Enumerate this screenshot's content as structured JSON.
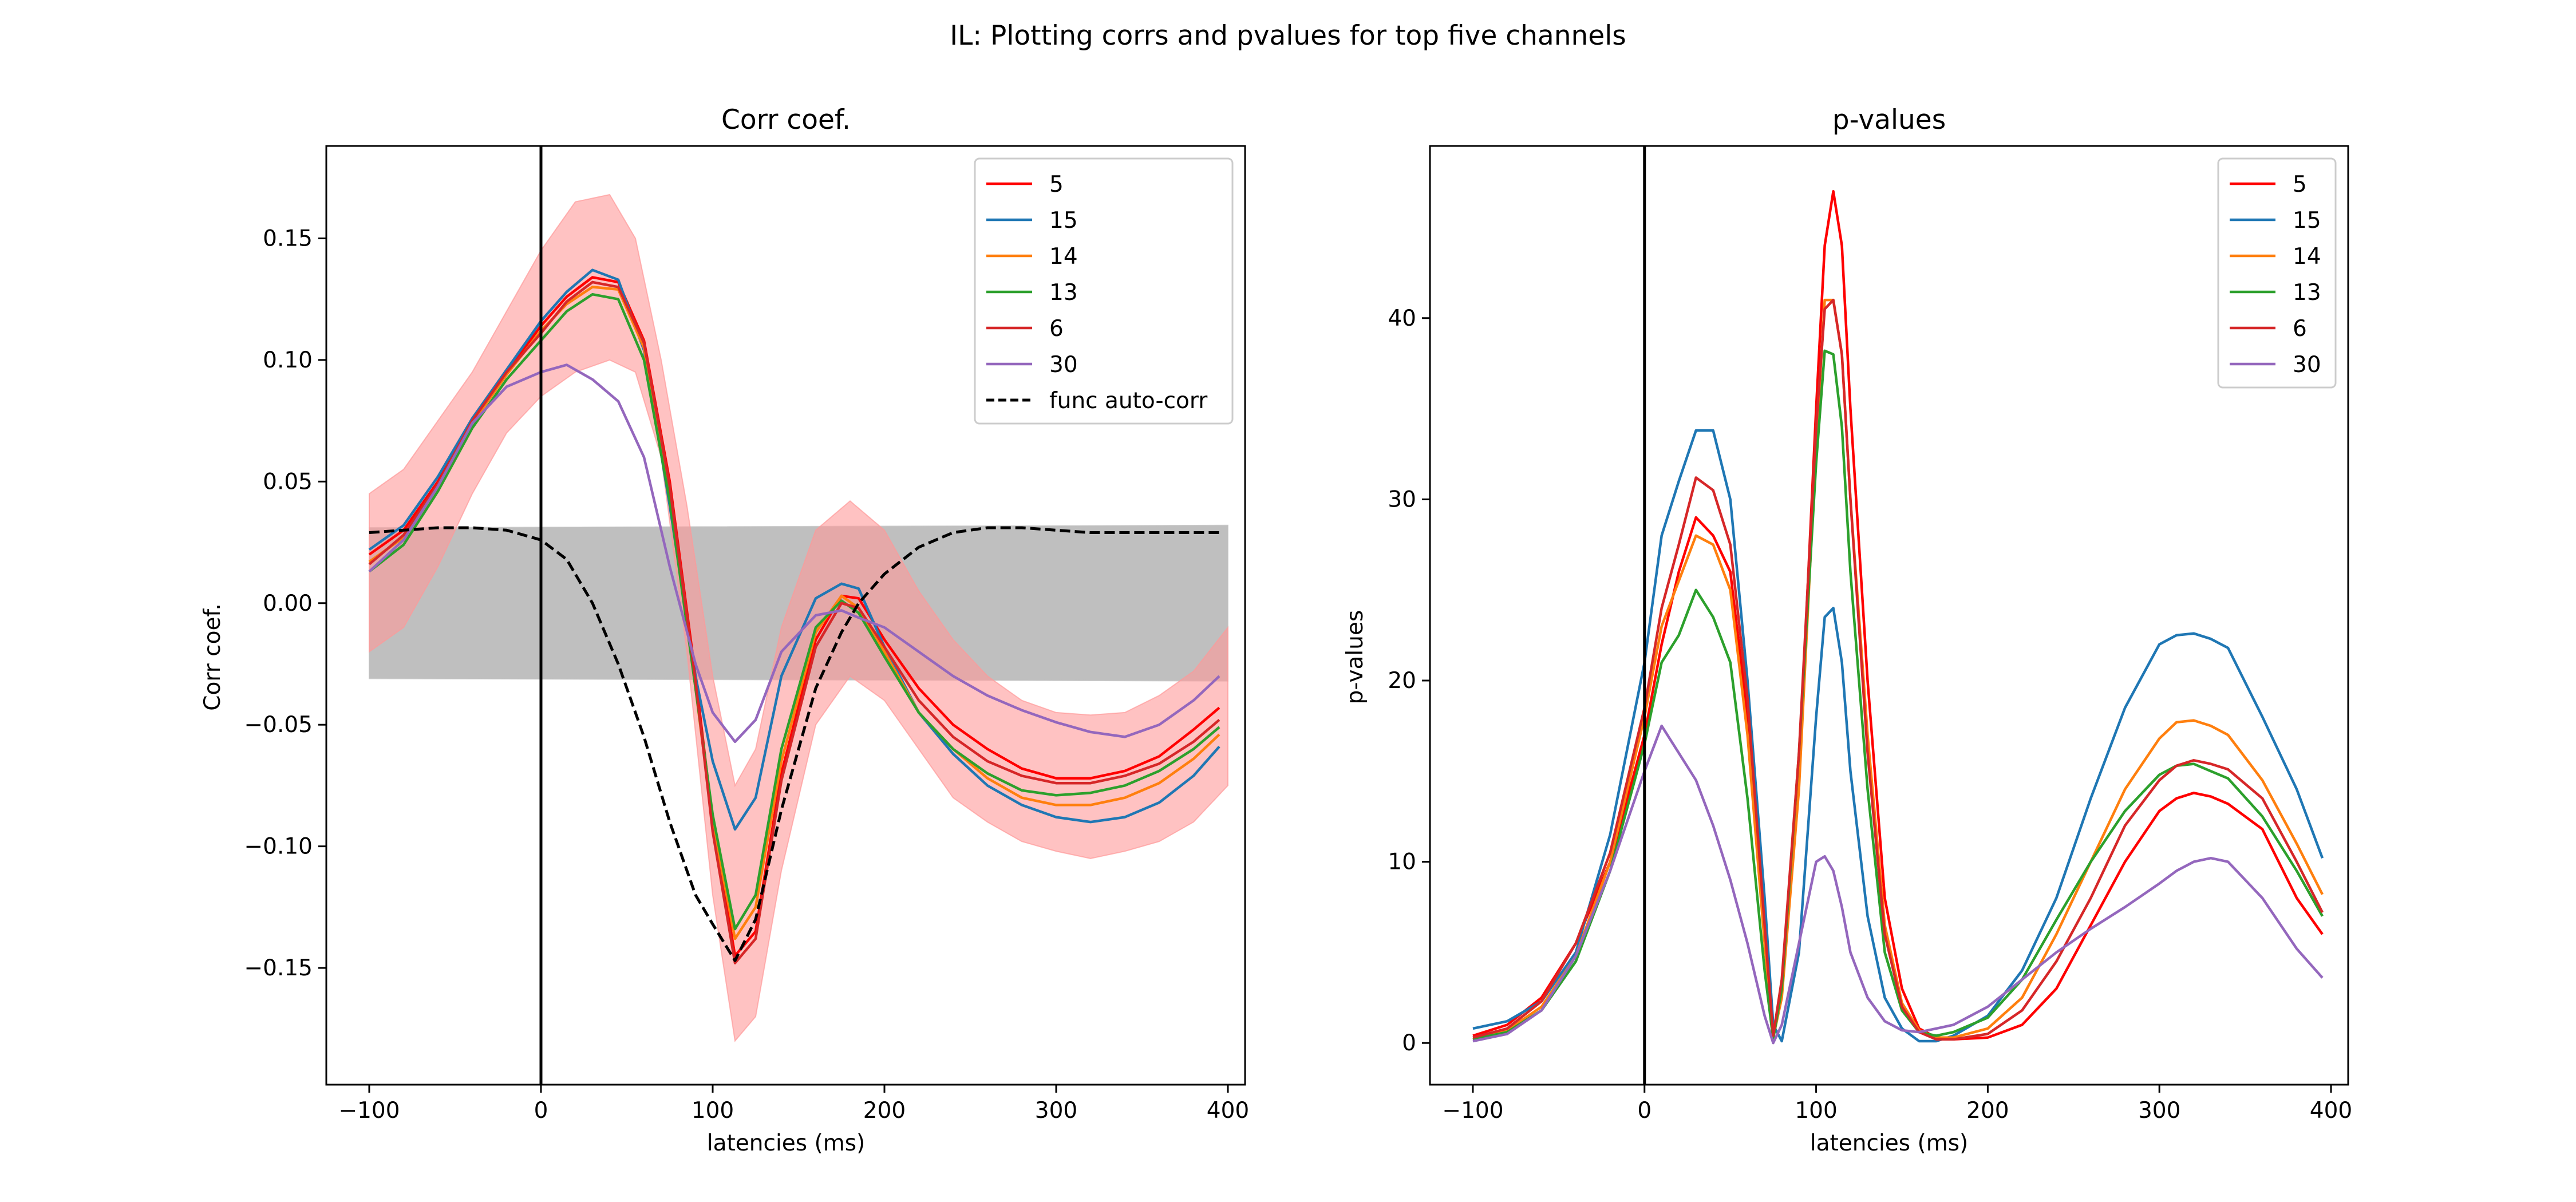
{
  "figure": {
    "suptitle": "IL: Plotting corrs and pvalues for top five channels"
  },
  "colors": {
    "red": "#ff0000",
    "darkred": "#d62728",
    "blue": "#1f77b4",
    "orange": "#ff7f0e",
    "green": "#2ca02c",
    "purple": "#9467bd",
    "black": "#000000",
    "ci_fill": "#ff9999",
    "null_fill": "#bfbfbf"
  },
  "chart_data": [
    {
      "type": "line",
      "title": "Corr coef.",
      "xlabel": "latencies (ms)",
      "ylabel": "Corr coef.",
      "xlim": [
        -125,
        410
      ],
      "ylim": [
        -0.198,
        0.188
      ],
      "xticks": [
        -100,
        0,
        100,
        200,
        300,
        400
      ],
      "xtick_labels": [
        "−100",
        "0",
        "100",
        "200",
        "300",
        "400"
      ],
      "yticks": [
        -0.15,
        -0.1,
        -0.05,
        0.0,
        0.05,
        0.1,
        0.15
      ],
      "ytick_labels": [
        "−0.15",
        "−0.10",
        "−0.05",
        "0.00",
        "0.05",
        "0.10",
        "0.15"
      ],
      "vline_x": 0,
      "legend_position": "top-right",
      "null_band": {
        "x": [
          -100,
          400
        ],
        "upper": [
          0.031,
          0.032
        ],
        "lower": [
          -0.031,
          -0.032
        ]
      },
      "ci_band": {
        "x": [
          -100,
          -80,
          -60,
          -40,
          -20,
          0,
          20,
          40,
          55,
          70,
          85,
          100,
          113,
          125,
          140,
          160,
          180,
          200,
          220,
          240,
          260,
          280,
          300,
          320,
          340,
          360,
          380,
          400
        ],
        "upper": [
          0.045,
          0.055,
          0.075,
          0.095,
          0.12,
          0.145,
          0.165,
          0.168,
          0.15,
          0.1,
          0.04,
          -0.03,
          -0.075,
          -0.06,
          -0.01,
          0.03,
          0.042,
          0.03,
          0.005,
          -0.015,
          -0.03,
          -0.04,
          -0.045,
          -0.046,
          -0.045,
          -0.038,
          -0.028,
          -0.01
        ],
        "lower": [
          -0.02,
          -0.01,
          0.015,
          0.045,
          0.07,
          0.085,
          0.095,
          0.1,
          0.095,
          0.06,
          -0.02,
          -0.12,
          -0.18,
          -0.17,
          -0.11,
          -0.05,
          -0.03,
          -0.04,
          -0.06,
          -0.08,
          -0.09,
          -0.098,
          -0.102,
          -0.105,
          -0.102,
          -0.098,
          -0.09,
          -0.075
        ]
      },
      "x": [
        -100,
        -80,
        -60,
        -40,
        -20,
        0,
        15,
        30,
        45,
        60,
        75,
        90,
        100,
        113,
        125,
        140,
        160,
        175,
        185,
        200,
        220,
        240,
        260,
        280,
        300,
        320,
        340,
        360,
        380,
        395
      ],
      "series": [
        {
          "name": "5",
          "color": "#ff0000",
          "values": [
            0.02,
            0.03,
            0.05,
            0.075,
            0.095,
            0.114,
            0.126,
            0.134,
            0.132,
            0.108,
            0.05,
            -0.03,
            -0.09,
            -0.145,
            -0.135,
            -0.07,
            -0.015,
            0.003,
            0.002,
            -0.015,
            -0.035,
            -0.05,
            -0.06,
            -0.068,
            -0.072,
            -0.072,
            -0.069,
            -0.063,
            -0.052,
            -0.043
          ]
        },
        {
          "name": "15",
          "color": "#1f77b4",
          "values": [
            0.022,
            0.032,
            0.052,
            0.076,
            0.096,
            0.116,
            0.128,
            0.137,
            0.133,
            0.104,
            0.04,
            -0.03,
            -0.065,
            -0.093,
            -0.08,
            -0.03,
            0.002,
            0.008,
            0.006,
            -0.018,
            -0.045,
            -0.062,
            -0.075,
            -0.083,
            -0.088,
            -0.09,
            -0.088,
            -0.082,
            -0.071,
            -0.059
          ]
        },
        {
          "name": "14",
          "color": "#ff7f0e",
          "values": [
            0.017,
            0.027,
            0.048,
            0.074,
            0.094,
            0.112,
            0.123,
            0.13,
            0.129,
            0.105,
            0.045,
            -0.035,
            -0.09,
            -0.138,
            -0.125,
            -0.065,
            -0.012,
            0.003,
            -0.002,
            -0.02,
            -0.045,
            -0.06,
            -0.072,
            -0.08,
            -0.083,
            -0.083,
            -0.08,
            -0.074,
            -0.064,
            -0.054
          ]
        },
        {
          "name": "13",
          "color": "#2ca02c",
          "values": [
            0.013,
            0.024,
            0.046,
            0.072,
            0.092,
            0.108,
            0.12,
            0.127,
            0.125,
            0.1,
            0.042,
            -0.035,
            -0.087,
            -0.134,
            -0.12,
            -0.06,
            -0.01,
            0.001,
            -0.004,
            -0.022,
            -0.045,
            -0.06,
            -0.07,
            -0.077,
            -0.079,
            -0.078,
            -0.075,
            -0.069,
            -0.06,
            -0.051
          ]
        },
        {
          "name": "6",
          "color": "#d62728",
          "values": [
            0.016,
            0.028,
            0.049,
            0.075,
            0.095,
            0.111,
            0.124,
            0.132,
            0.13,
            0.107,
            0.048,
            -0.032,
            -0.094,
            -0.148,
            -0.138,
            -0.073,
            -0.018,
            0.0,
            -0.002,
            -0.018,
            -0.04,
            -0.055,
            -0.065,
            -0.071,
            -0.074,
            -0.074,
            -0.071,
            -0.066,
            -0.057,
            -0.048
          ]
        },
        {
          "name": "30",
          "color": "#9467bd",
          "values": [
            0.013,
            0.026,
            0.048,
            0.074,
            0.089,
            0.095,
            0.098,
            0.092,
            0.083,
            0.06,
            0.015,
            -0.025,
            -0.045,
            -0.057,
            -0.048,
            -0.02,
            -0.005,
            -0.003,
            -0.006,
            -0.01,
            -0.02,
            -0.03,
            -0.038,
            -0.044,
            -0.049,
            -0.053,
            -0.055,
            -0.05,
            -0.04,
            -0.03
          ]
        },
        {
          "name": "func auto-corr",
          "color": "#000000",
          "dashed": true,
          "values": [
            0.029,
            0.03,
            0.031,
            0.031,
            0.03,
            0.026,
            0.018,
            0.0,
            -0.025,
            -0.055,
            -0.09,
            -0.12,
            -0.132,
            -0.147,
            -0.13,
            -0.085,
            -0.035,
            -0.012,
            0.0,
            0.012,
            0.023,
            0.029,
            0.031,
            0.031,
            0.03,
            0.029,
            0.029,
            0.029,
            0.029,
            0.029
          ]
        }
      ]
    },
    {
      "type": "line",
      "title": "p-values",
      "xlabel": "latencies (ms)",
      "ylabel": "p-values",
      "xlim": [
        -125,
        410
      ],
      "ylim": [
        -2.3,
        49.5
      ],
      "xticks": [
        -100,
        0,
        100,
        200,
        300,
        400
      ],
      "xtick_labels": [
        "−100",
        "0",
        "100",
        "200",
        "300",
        "400"
      ],
      "yticks": [
        0,
        10,
        20,
        30,
        40
      ],
      "ytick_labels": [
        "0",
        "10",
        "20",
        "30",
        "40"
      ],
      "vline_x": 0,
      "legend_position": "top-right",
      "x": [
        -100,
        -80,
        -60,
        -40,
        -20,
        0,
        10,
        20,
        30,
        40,
        50,
        60,
        70,
        75,
        80,
        90,
        100,
        105,
        110,
        115,
        120,
        130,
        140,
        150,
        160,
        170,
        180,
        200,
        220,
        240,
        260,
        280,
        300,
        310,
        320,
        330,
        340,
        360,
        380,
        395
      ],
      "series": [
        {
          "name": "5",
          "color": "#ff0000",
          "values": [
            0.4,
            1.0,
            2.5,
            5.5,
            10.0,
            17.0,
            22.0,
            26.0,
            29.0,
            28.0,
            26.0,
            18.0,
            6.0,
            0.5,
            3.0,
            15.0,
            35.0,
            44.0,
            47.0,
            44.0,
            35.0,
            20.0,
            8.0,
            3.0,
            0.8,
            0.3,
            0.2,
            0.3,
            1.0,
            3.0,
            6.5,
            10.0,
            12.8,
            13.5,
            13.8,
            13.6,
            13.2,
            11.8,
            8.0,
            6.0
          ]
        },
        {
          "name": "15",
          "color": "#1f77b4",
          "values": [
            0.8,
            1.2,
            2.3,
            5.0,
            11.5,
            21.0,
            28.0,
            31.0,
            33.8,
            33.8,
            30.0,
            20.0,
            8.0,
            1.0,
            0.1,
            5.0,
            18.0,
            23.5,
            24.0,
            21.0,
            15.0,
            7.0,
            2.5,
            0.8,
            0.1,
            0.1,
            0.4,
            1.5,
            4.0,
            8.0,
            13.5,
            18.5,
            22.0,
            22.5,
            22.6,
            22.3,
            21.8,
            18.0,
            14.0,
            10.2
          ]
        },
        {
          "name": "14",
          "color": "#ff7f0e",
          "values": [
            0.2,
            0.7,
            2.0,
            4.8,
            10.0,
            18.0,
            23.0,
            25.5,
            28.0,
            27.5,
            25.0,
            17.0,
            5.5,
            0.3,
            2.5,
            14.0,
            33.0,
            41.0,
            41.0,
            38.0,
            30.0,
            17.0,
            6.5,
            2.2,
            0.7,
            0.3,
            0.3,
            0.8,
            2.5,
            6.0,
            10.0,
            14.0,
            16.8,
            17.7,
            17.8,
            17.5,
            17.0,
            14.5,
            11.0,
            8.2
          ]
        },
        {
          "name": "13",
          "color": "#2ca02c",
          "values": [
            0.2,
            0.6,
            1.8,
            4.5,
            9.5,
            16.5,
            21.0,
            22.5,
            25.0,
            23.5,
            21.0,
            13.5,
            4.0,
            0.2,
            3.0,
            16.0,
            32.0,
            38.2,
            38.0,
            34.0,
            26.0,
            14.0,
            5.0,
            1.8,
            0.6,
            0.4,
            0.6,
            1.4,
            3.5,
            6.8,
            10.0,
            12.8,
            14.8,
            15.3,
            15.4,
            15.0,
            14.6,
            12.5,
            9.5,
            7.0
          ]
        },
        {
          "name": "6",
          "color": "#d62728",
          "values": [
            0.3,
            0.8,
            2.3,
            5.5,
            10.5,
            18.5,
            24.0,
            27.5,
            31.2,
            30.5,
            27.5,
            19.0,
            6.5,
            0.4,
            3.5,
            16.0,
            34.0,
            40.5,
            41.0,
            38.0,
            30.0,
            16.0,
            6.0,
            2.0,
            0.6,
            0.2,
            0.2,
            0.5,
            1.8,
            4.5,
            8.0,
            12.0,
            14.5,
            15.3,
            15.6,
            15.4,
            15.1,
            13.5,
            10.0,
            7.2
          ]
        },
        {
          "name": "30",
          "color": "#9467bd",
          "values": [
            0.1,
            0.5,
            1.8,
            4.8,
            9.5,
            15.0,
            17.5,
            16.0,
            14.5,
            12.0,
            9.0,
            5.5,
            1.5,
            0.0,
            1.0,
            5.5,
            10.0,
            10.3,
            9.5,
            7.5,
            5.0,
            2.5,
            1.2,
            0.7,
            0.6,
            0.8,
            1.0,
            2.0,
            3.5,
            5.0,
            6.3,
            7.5,
            8.8,
            9.5,
            10.0,
            10.2,
            10.0,
            8.0,
            5.2,
            3.6
          ]
        }
      ]
    }
  ]
}
